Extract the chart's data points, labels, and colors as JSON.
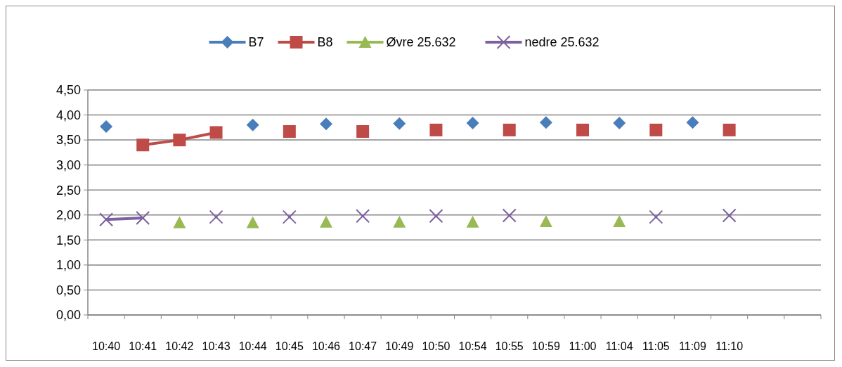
{
  "chart_data": {
    "type": "line",
    "categories": [
      "10:40",
      "10:41",
      "10:42",
      "10:43",
      "10:44",
      "10:45",
      "10:46",
      "10:47",
      "10:49",
      "10:50",
      "10:54",
      "10:55",
      "10:59",
      "11:00",
      "11:04",
      "11:05",
      "11:09",
      "11:10",
      null,
      null
    ],
    "series": [
      {
        "name": "B7",
        "type": "scatter",
        "color": "#4a7ebb",
        "marker": "diamond",
        "values": [
          3.77,
          null,
          null,
          null,
          3.8,
          null,
          3.82,
          null,
          3.83,
          null,
          3.84,
          null,
          3.85,
          null,
          3.84,
          null,
          3.85,
          null,
          null,
          null
        ]
      },
      {
        "name": "B8",
        "color": "#be4b48",
        "marker": "square",
        "values": [
          null,
          3.4,
          3.5,
          3.65,
          null,
          3.67,
          null,
          3.67,
          null,
          3.7,
          null,
          3.7,
          null,
          3.7,
          null,
          3.7,
          null,
          3.7,
          null,
          null
        ]
      },
      {
        "name": "Øvre 25.632",
        "type": "scatter",
        "color": "#98b954",
        "marker": "triangle",
        "values": [
          null,
          null,
          1.85,
          null,
          1.85,
          null,
          1.86,
          null,
          1.86,
          null,
          1.86,
          null,
          1.87,
          null,
          1.87,
          null,
          null,
          null,
          null,
          null
        ]
      },
      {
        "name": "nedre 25.632",
        "color": "#7d60a0",
        "marker": "cross",
        "values": [
          1.91,
          1.94,
          null,
          1.96,
          null,
          1.96,
          null,
          1.98,
          null,
          1.98,
          null,
          1.99,
          null,
          null,
          null,
          1.96,
          null,
          1.99,
          null,
          null
        ]
      }
    ],
    "ylim": [
      0,
      4.5
    ],
    "yticks": [
      {
        "value": 0,
        "label": "0,00"
      },
      {
        "value": 0.5,
        "label": "0,50"
      },
      {
        "value": 1,
        "label": "1,00"
      },
      {
        "value": 1.5,
        "label": "1,50"
      },
      {
        "value": 2,
        "label": "2,00"
      },
      {
        "value": 2.5,
        "label": "2,50"
      },
      {
        "value": 3,
        "label": "3,00"
      },
      {
        "value": 3.5,
        "label": "3,50"
      },
      {
        "value": 4,
        "label": "4,00"
      },
      {
        "value": 4.5,
        "label": "4,50"
      }
    ],
    "grid": "y",
    "legend": "top",
    "line_style": "solid"
  }
}
